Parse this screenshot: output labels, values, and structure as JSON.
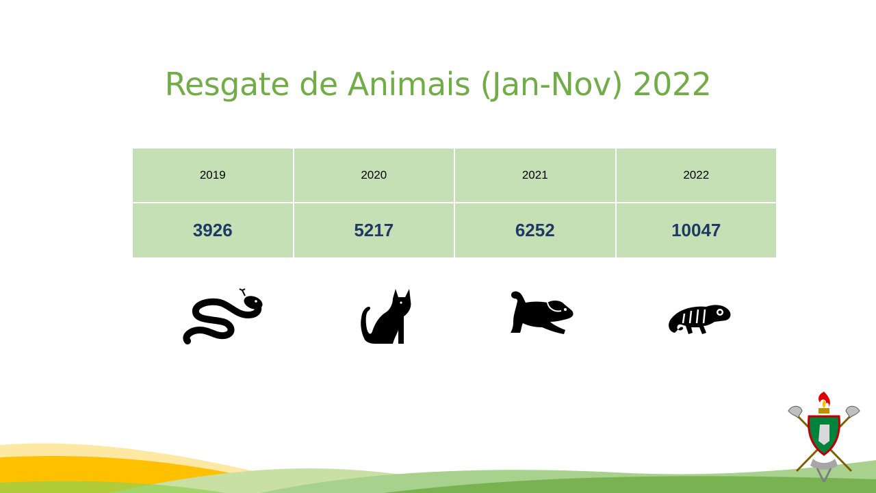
{
  "slide": {
    "title": "Resgate de Animais (Jan-Nov) 2022"
  },
  "table": {
    "years": [
      "2019",
      "2020",
      "2021",
      "2022"
    ],
    "values": [
      "3926",
      "5217",
      "6252",
      "10047"
    ]
  },
  "icons": [
    "snake-icon",
    "cat-icon",
    "dog-icon",
    "chameleon-icon"
  ],
  "colors": {
    "title": "#70ad47",
    "table_fill": "#c5e0b4",
    "value_text": "#1f3864",
    "wave_green": "#8cc63f",
    "wave_yellow": "#ffc000"
  }
}
